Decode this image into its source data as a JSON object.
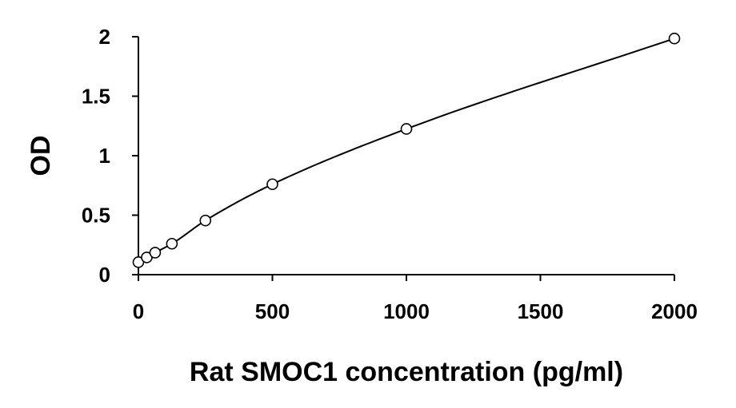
{
  "chart_data": {
    "type": "scatter",
    "xlabel": "Rat SMOC1 concentration (pg/ml)",
    "ylabel": "OD",
    "xlim": [
      0,
      2000
    ],
    "ylim": [
      0,
      2
    ],
    "x_ticks": [
      0,
      500,
      1000,
      1500,
      2000
    ],
    "x_tick_labels": [
      "0",
      "500",
      "1000",
      "1500",
      "2000"
    ],
    "y_ticks": [
      0,
      0.5,
      1,
      1.5,
      2
    ],
    "y_tick_labels": [
      "0",
      "0.5",
      "1",
      "1.5",
      "2"
    ],
    "grid": false,
    "series": [
      {
        "marker": "open-circle",
        "line": "smooth",
        "points": [
          {
            "x": 0,
            "y": 0.105
          },
          {
            "x": 31.25,
            "y": 0.145
          },
          {
            "x": 62.5,
            "y": 0.185
          },
          {
            "x": 125,
            "y": 0.26
          },
          {
            "x": 250,
            "y": 0.455
          },
          {
            "x": 500,
            "y": 0.76
          },
          {
            "x": 1000,
            "y": 1.225
          },
          {
            "x": 2000,
            "y": 1.985
          }
        ]
      }
    ]
  }
}
